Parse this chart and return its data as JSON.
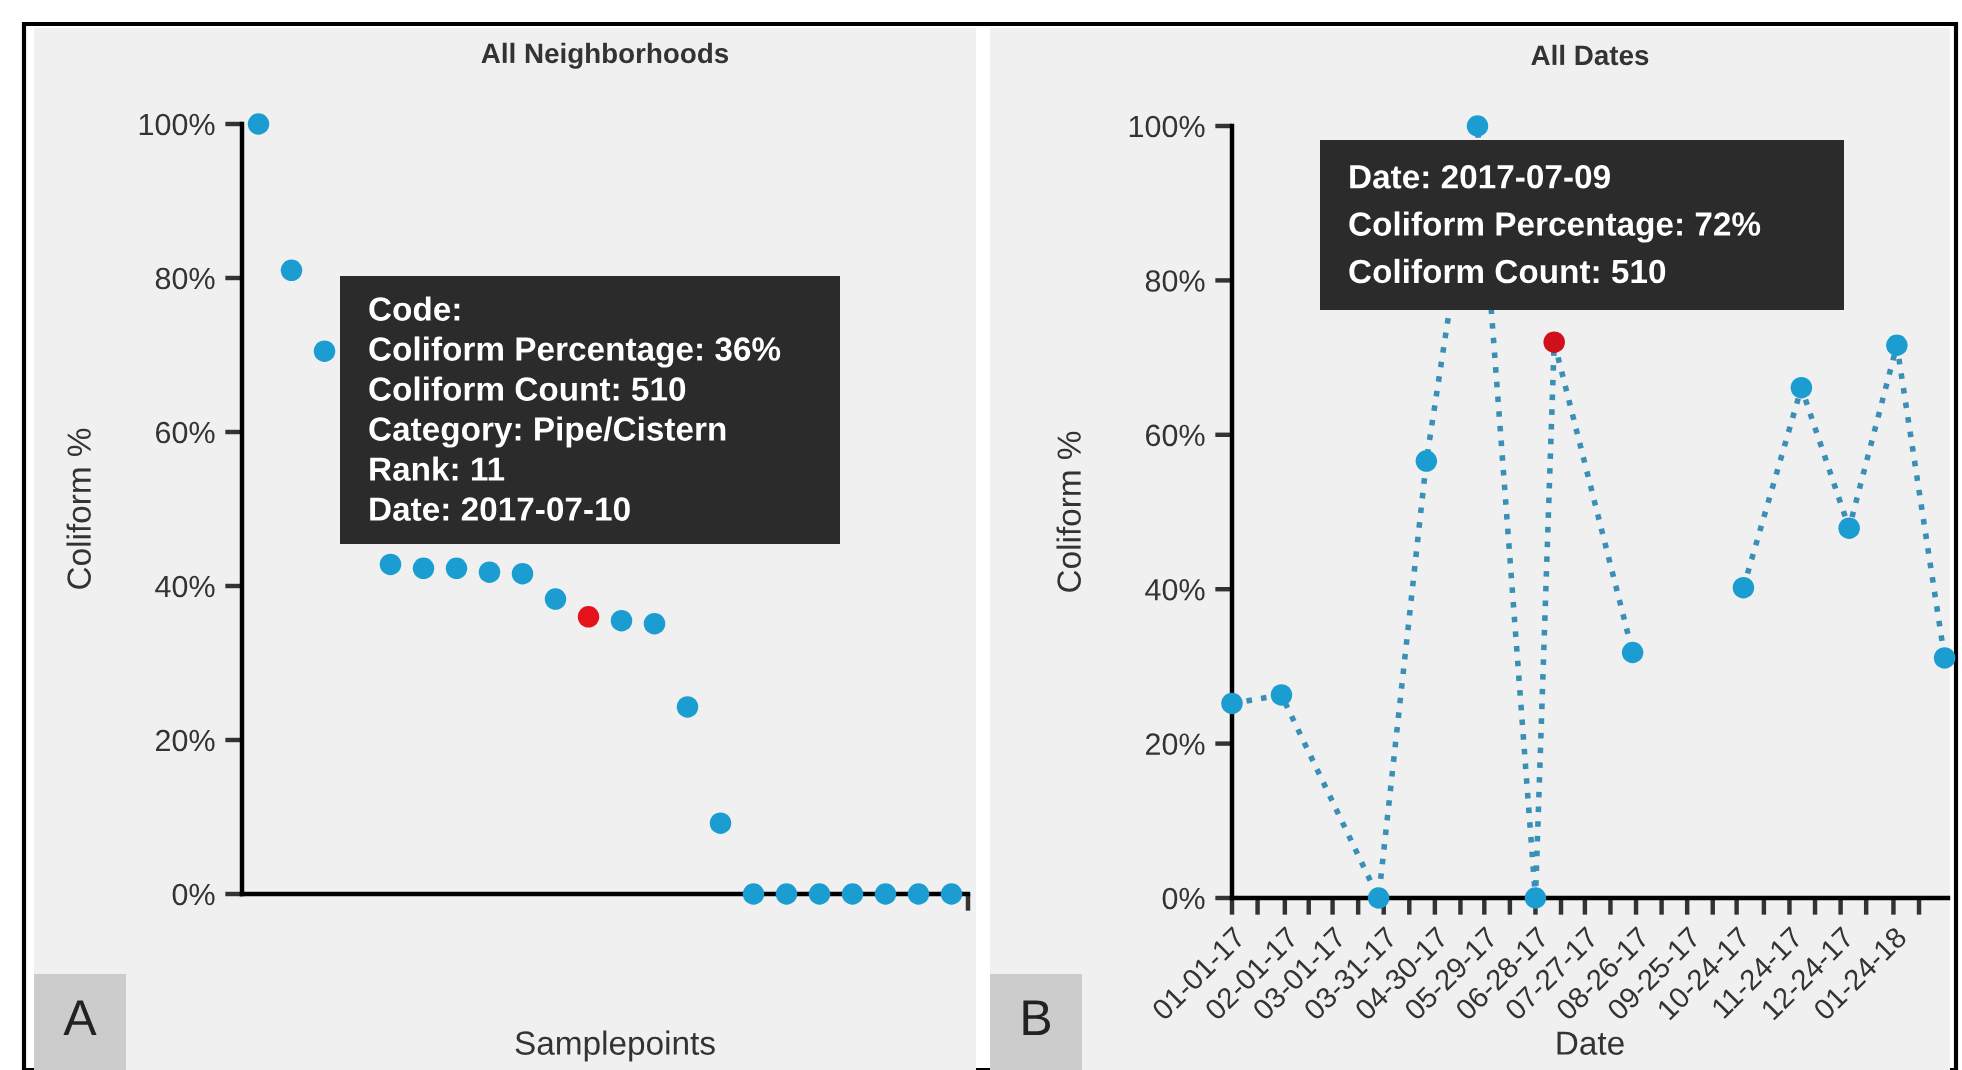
{
  "chart_data": [
    {
      "type": "scatter",
      "title": "All Neighborhoods",
      "xlabel": "Samplepoints",
      "ylabel": "Coliform %",
      "categories": [
        null,
        null,
        null,
        null,
        null,
        null,
        null,
        null,
        null,
        null,
        null,
        null,
        null,
        null,
        null,
        null,
        null,
        null,
        null,
        null,
        null,
        null
      ],
      "values": [
        100,
        81,
        70.5,
        null,
        42.8,
        42.3,
        42.3,
        41.8,
        41.6,
        38.3,
        36,
        35.5,
        35.1,
        24.3,
        9.2,
        0,
        0,
        0,
        0,
        0,
        0,
        0
      ],
      "colors": [
        "#1b9dd1",
        "#1b9dd1",
        "#1b9dd1",
        "#1b9dd1",
        "#1b9dd1",
        "#1b9dd1",
        "#1b9dd1",
        "#1b9dd1",
        "#1b9dd1",
        "#1b9dd1",
        "#e3121b",
        "#1b9dd1",
        "#1b9dd1",
        "#1b9dd1",
        "#1b9dd1",
        "#1b9dd1",
        "#1b9dd1",
        "#1b9dd1",
        "#1b9dd1",
        "#1b9dd1",
        "#1b9dd1",
        "#1b9dd1"
      ],
      "marker": "circle",
      "ylim": [
        0,
        100
      ],
      "yticks": [
        {
          "value": 0,
          "label": "0%"
        },
        {
          "value": 20,
          "label": "20%"
        },
        {
          "value": 40,
          "label": "40%"
        },
        {
          "value": 60,
          "label": "60%"
        },
        {
          "value": 80,
          "label": "80%"
        },
        {
          "value": 100,
          "label": "100%"
        }
      ],
      "tick_labels": "y",
      "grid": false,
      "legend": false,
      "annotations": [
        "Code:",
        "Coliform Percentage: 36%",
        "Coliform Count: 510",
        "Category: Pipe/Cistern",
        "Rank: 11",
        "Date: 2017-07-10",
        "A"
      ]
    },
    {
      "type": "line",
      "title": "All Dates",
      "xlabel": "Date",
      "ylabel": "Coliform %",
      "x": [
        "2017-01-01",
        "2017-01-30",
        "2017-03-28",
        "2017-04-25",
        "2017-05-25",
        "2017-06-28",
        "2017-07-09",
        "2017-08-24",
        "2017-09-27",
        "2017-10-28",
        "2017-12-01",
        "2017-12-29",
        "2018-01-26",
        "2018-02-23"
      ],
      "values": [
        25.2,
        26.3,
        0,
        56.6,
        100,
        0,
        72,
        31.8,
        null,
        40.2,
        66.1,
        47.9,
        71.6,
        31.1
      ],
      "color": "#3a8fb7",
      "colors": [
        "#1b9dd1",
        "#1b9dd1",
        "#1b9dd1",
        "#1b9dd1",
        "#1b9dd1",
        "#1b9dd1",
        "#d0101a",
        "#1b9dd1",
        "#1b9dd1",
        "#1b9dd1",
        "#1b9dd1",
        "#1b9dd1",
        "#1b9dd1",
        "#1b9dd1"
      ],
      "marker": "circle",
      "line_style": "dotted",
      "xlim": [
        "2017-01-01",
        "2018-02-25"
      ],
      "ylim": [
        0,
        100
      ],
      "xticks": [
        {
          "value": "2017-01-01",
          "label": "01-01-17"
        },
        {
          "value": "2017-01-16",
          "label": null
        },
        {
          "value": "2017-02-01",
          "label": "02-01-17"
        },
        {
          "value": "2017-02-15",
          "label": null
        },
        {
          "value": "2017-03-01",
          "label": "03-01-17"
        },
        {
          "value": "2017-03-16",
          "label": null
        },
        {
          "value": "2017-03-31",
          "label": "03-31-17"
        },
        {
          "value": "2017-04-15",
          "label": null
        },
        {
          "value": "2017-04-30",
          "label": "04-30-17"
        },
        {
          "value": "2017-05-15",
          "label": null
        },
        {
          "value": "2017-05-29",
          "label": "05-29-17"
        },
        {
          "value": "2017-06-13",
          "label": null
        },
        {
          "value": "2017-06-28",
          "label": "06-28-17"
        },
        {
          "value": "2017-07-13",
          "label": null
        },
        {
          "value": "2017-07-27",
          "label": "07-27-17"
        },
        {
          "value": "2017-08-11",
          "label": null
        },
        {
          "value": "2017-08-26",
          "label": "08-26-17"
        },
        {
          "value": "2017-09-10",
          "label": null
        },
        {
          "value": "2017-09-25",
          "label": "09-25-17"
        },
        {
          "value": "2017-10-10",
          "label": null
        },
        {
          "value": "2017-10-24",
          "label": "10-24-17"
        },
        {
          "value": "2017-11-09",
          "label": null
        },
        {
          "value": "2017-11-24",
          "label": "11-24-17"
        },
        {
          "value": "2017-12-09",
          "label": null
        },
        {
          "value": "2017-12-24",
          "label": "12-24-17"
        },
        {
          "value": "2018-01-08",
          "label": null
        },
        {
          "value": "2018-01-24",
          "label": "01-24-18"
        },
        {
          "value": "2018-02-08",
          "label": null
        }
      ],
      "yticks": [
        {
          "value": 0,
          "label": "0%"
        },
        {
          "value": 20,
          "label": "20%"
        },
        {
          "value": 40,
          "label": "40%"
        },
        {
          "value": 60,
          "label": "60%"
        },
        {
          "value": 80,
          "label": "80%"
        },
        {
          "value": 100,
          "label": "100%"
        }
      ],
      "grid": false,
      "legend": false,
      "annotations": [
        "Date: 2017-07-09",
        "Coliform Percentage: 72%",
        "Coliform Count: 510",
        "B"
      ]
    }
  ]
}
